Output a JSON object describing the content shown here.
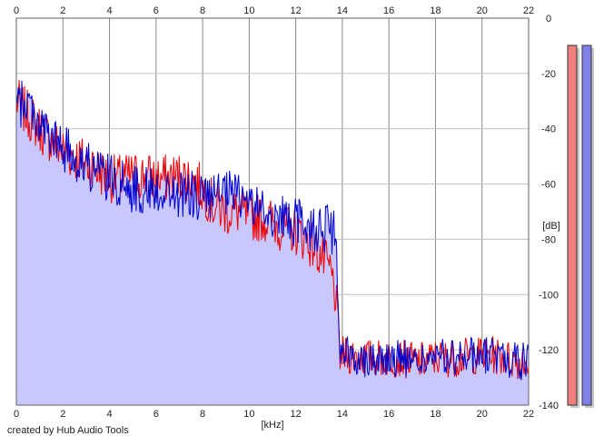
{
  "footer": {
    "credit": "created by Hub Audio Tools"
  },
  "chart_data": {
    "type": "area",
    "xlabel": "[kHz]",
    "ylabel": "[dB]",
    "xlim": [
      0,
      22
    ],
    "ylim": [
      -140,
      0
    ],
    "x_ticks": [
      0,
      2,
      4,
      6,
      8,
      10,
      12,
      14,
      16,
      18,
      20,
      22
    ],
    "y_ticks": [
      0,
      -20,
      -40,
      -60,
      -80,
      -100,
      -120,
      -140
    ],
    "y_tick_labels": [
      "0",
      "-20",
      "-40",
      "-60",
      "-80",
      "-100",
      "-120",
      "-140"
    ],
    "grid": true,
    "colors": {
      "fill": "#c8c8ff",
      "left_channel": "#ee0000",
      "right_channel": "#0000cc",
      "grid": "#b0b0b0",
      "meter_left": "#f08080",
      "meter_right": "#8080e8"
    },
    "series": [
      {
        "color": "#ee0000",
        "x": [
          0,
          0.5,
          1,
          1.5,
          2,
          2.5,
          3,
          3.5,
          4,
          4.5,
          5,
          5.5,
          6,
          6.5,
          7,
          7.5,
          8,
          8.5,
          9,
          9.5,
          10,
          10.5,
          11,
          11.5,
          12,
          12.5,
          13,
          13.5,
          13.7,
          13.9,
          14.5,
          15,
          15.5,
          16,
          16.5,
          17,
          17.5,
          18,
          18.5,
          19,
          19.5,
          20,
          20.5,
          21,
          21.5,
          22
        ],
        "y": [
          -30,
          -35,
          -40,
          -44,
          -48,
          -50,
          -52,
          -55,
          -58,
          -58,
          -57,
          -57,
          -58,
          -58,
          -57,
          -58,
          -62,
          -68,
          -70,
          -70,
          -72,
          -72,
          -74,
          -76,
          -77,
          -80,
          -85,
          -92,
          -100,
          -122,
          -122,
          -123,
          -123,
          -123,
          -123,
          -124,
          -124,
          -123,
          -123,
          -123,
          -122,
          -122,
          -122,
          -123,
          -124,
          -124
        ]
      },
      {
        "color": "#0000cc",
        "x": [
          0,
          0.5,
          1,
          1.5,
          2,
          2.5,
          3,
          3.5,
          4,
          4.5,
          5,
          5.5,
          6,
          6.5,
          7,
          7.5,
          8,
          8.5,
          9,
          9.5,
          10,
          10.5,
          11,
          11.5,
          12,
          12.5,
          13,
          13.5,
          13.7,
          13.9,
          14.5,
          15,
          15.5,
          16,
          16.5,
          17,
          17.5,
          18,
          18.5,
          19,
          19.5,
          20,
          20.5,
          21,
          21.5,
          22
        ],
        "y": [
          -32,
          -30,
          -38,
          -44,
          -47,
          -50,
          -53,
          -56,
          -58,
          -60,
          -62,
          -62,
          -62,
          -63,
          -64,
          -64,
          -65,
          -65,
          -64,
          -64,
          -66,
          -70,
          -71,
          -73,
          -74,
          -75,
          -76,
          -77,
          -78,
          -122,
          -122,
          -123,
          -123,
          -123,
          -123,
          -124,
          -124,
          -123,
          -123,
          -123,
          -122,
          -122,
          -122,
          -123,
          -124,
          -124
        ]
      }
    ],
    "meters": {
      "left_level": 1.0,
      "right_level": 1.0
    }
  }
}
